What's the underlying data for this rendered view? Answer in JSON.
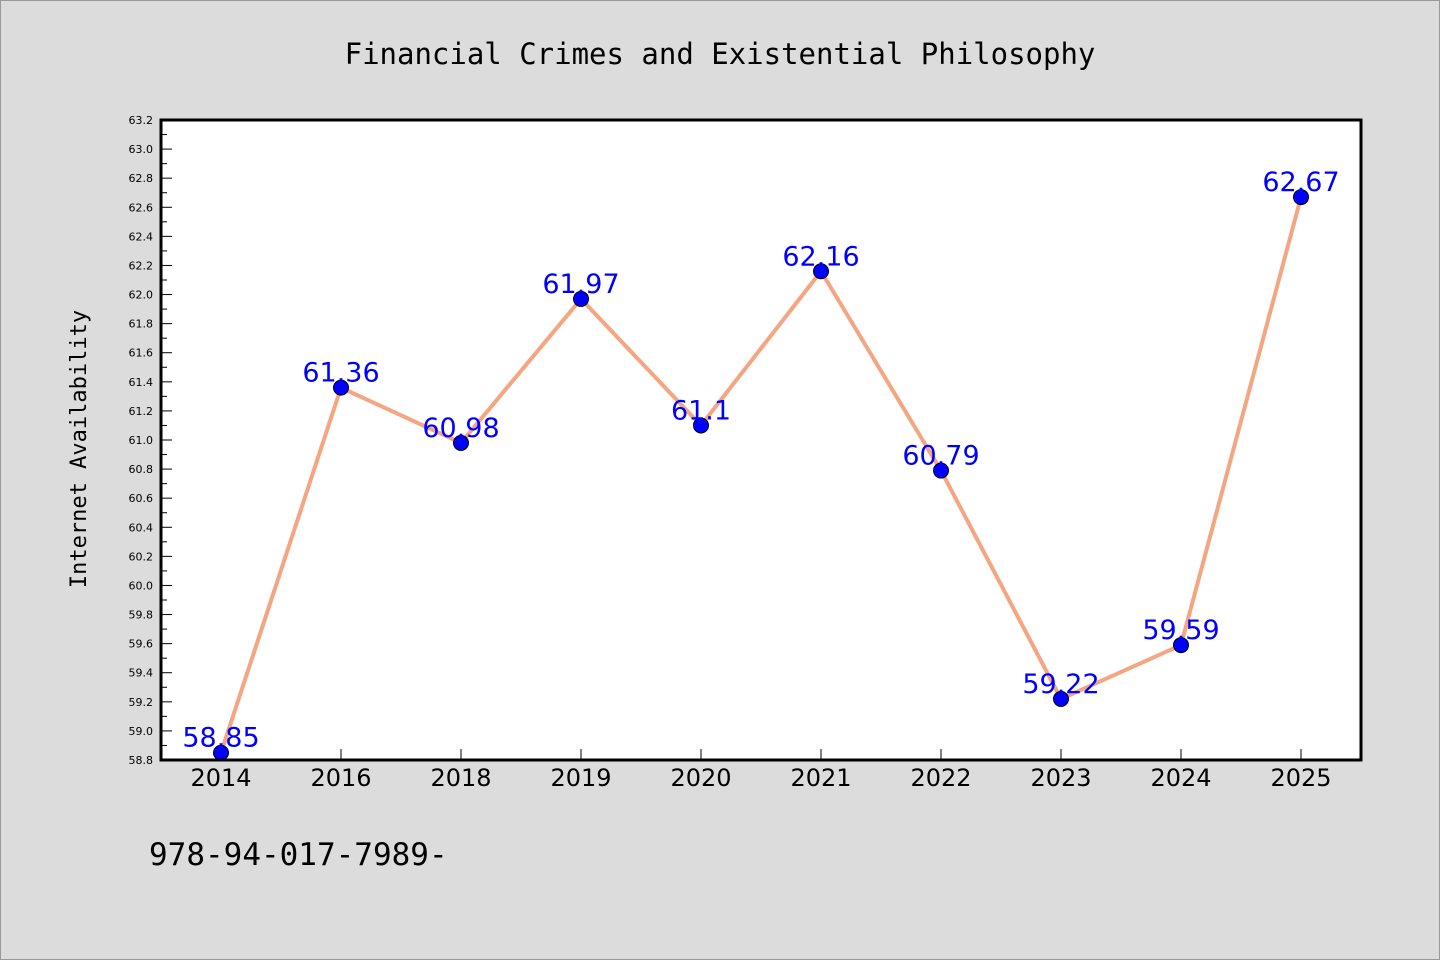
{
  "chart_data": {
    "type": "line",
    "title": "Financial Crimes and Existential Philosophy",
    "xlabel": "",
    "ylabel": "Internet Availability",
    "categories": [
      "2014",
      "2016",
      "2018",
      "2019",
      "2020",
      "2021",
      "2022",
      "2023",
      "2024",
      "2025"
    ],
    "series": [
      {
        "values": [
          58.85,
          61.36,
          60.98,
          61.97,
          61.1,
          62.16,
          60.79,
          59.22,
          59.59,
          62.67
        ],
        "labels": [
          "58.85",
          "61.36",
          "60.98",
          "61.97",
          "61.1",
          "62.16",
          "60.79",
          "59.22",
          "59.59",
          "62.67"
        ],
        "line_color": "#f4a582",
        "marker_color": "#0000ff"
      }
    ],
    "ylim": [
      58.8,
      63.2
    ],
    "yticks": [
      "58.8",
      "59.0",
      "59.2",
      "59.4",
      "59.6",
      "59.8",
      "60.0",
      "60.2",
      "60.4",
      "60.6",
      "60.8",
      "61.0",
      "61.2",
      "61.4",
      "61.6",
      "61.8",
      "62.0",
      "62.2",
      "62.4",
      "62.6",
      "62.8",
      "63.0",
      "63.2"
    ],
    "grid": false,
    "legend": "none",
    "background_color": "#dcdcdc",
    "plot_background": "#ffffff",
    "footnote": "978-94-017-7989-"
  }
}
